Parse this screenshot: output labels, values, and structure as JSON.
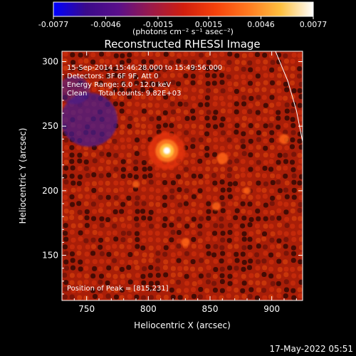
{
  "chart_data": {
    "type": "heatmap",
    "title": "Reconstructed RHESSI Image",
    "xlabel": "Heliocentric X (arcsec)",
    "ylabel": "Heliocentric Y (arcsec)",
    "xlim": [
      730,
      925
    ],
    "ylim": [
      115,
      308
    ],
    "x_ticks": [
      750,
      800,
      850,
      900
    ],
    "y_ticks": [
      150,
      200,
      250,
      300
    ],
    "grid": false,
    "colorbar": {
      "range": [
        -0.0077,
        0.0077
      ],
      "ticks": [
        -0.0077,
        -0.0046,
        -0.0015,
        0.0015,
        0.0046,
        0.0077
      ],
      "tick_labels": [
        "-0.0077",
        "-0.0046",
        "-0.0015",
        "0.0015",
        "0.0046",
        "0.0077"
      ],
      "label": "(photons cm⁻² s⁻¹ asec⁻²)",
      "colors": [
        "#0000ff",
        "#3a0a8a",
        "#5a0f8a",
        "#9a1a4a",
        "#d01e0e",
        "#f6420b",
        "#ff7a20",
        "#ffc040",
        "#ffffff"
      ]
    },
    "annotations": [
      "15-Sep-2014 15:46:28.000 to 15:49:56.000",
      "Detectors: 3F 6F 9F, Att 0",
      "Energy Range: 6.0 - 12.0 keV",
      "Clean     Total counts: 9.82E+03"
    ],
    "peak_label": "Position of Peak = [815,231]",
    "peak": [
      815,
      231
    ],
    "limb_arc": [
      [
        903,
        308
      ],
      [
        913,
        285
      ],
      [
        920,
        262
      ],
      [
        925,
        238
      ]
    ]
  },
  "footer": {
    "timestamp": "17-May-2022 05:51"
  }
}
